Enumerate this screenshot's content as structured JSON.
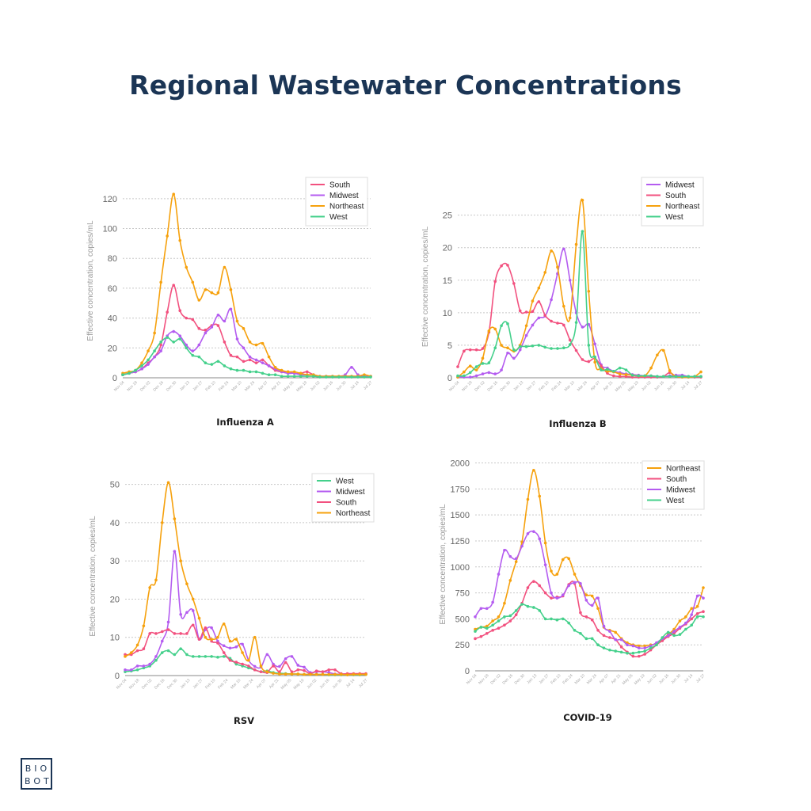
{
  "page": {
    "title": "Regional Wastewater Concentrations",
    "logo": {
      "line1": "BIO",
      "line2": "BOT"
    }
  },
  "colors": {
    "South": "#f2517f",
    "Midwest": "#b45cf0",
    "Northeast": "#f6a10d",
    "West": "#44d08b"
  },
  "chart_data": [
    {
      "type": "line",
      "title": "Influenza A",
      "ylabel": "Effective concentration, copies/mL",
      "ylim": [
        0,
        130
      ],
      "yticks": [
        0,
        20,
        40,
        60,
        80,
        100,
        120
      ],
      "xtick_labels": [
        "Nov 04",
        "Nov 18",
        "Dec 02",
        "Dec 16",
        "Dec 30",
        "Jan 13",
        "Jan 27",
        "Feb 10",
        "Feb 24",
        "Mar 10",
        "Mar 24",
        "Apr 07",
        "Apr 21",
        "May 05",
        "May 19",
        "Jun 02",
        "Jun 16",
        "Jun 30",
        "Jul 14",
        "Jul 27"
      ],
      "legend": "top-right",
      "grid": true,
      "series": [
        {
          "name": "South",
          "values": [
            2,
            3,
            4,
            6,
            10,
            14,
            22,
            44,
            62,
            45,
            40,
            39,
            33,
            32,
            35,
            35,
            24,
            15,
            14,
            11,
            12,
            10,
            12,
            8,
            5,
            4,
            4,
            3,
            3,
            4,
            2,
            1,
            1,
            1,
            0.5,
            1,
            1,
            1,
            1,
            1
          ]
        },
        {
          "name": "Midwest",
          "values": [
            2,
            3,
            4,
            6,
            9,
            14,
            18,
            28,
            31,
            28,
            22,
            18,
            22,
            30,
            34,
            42,
            38,
            46,
            26,
            20,
            14,
            12,
            10,
            8,
            6,
            4,
            3,
            3,
            2,
            2,
            2,
            1,
            1,
            1,
            1,
            2,
            7,
            2,
            1,
            1
          ]
        },
        {
          "name": "Northeast",
          "values": [
            3,
            4,
            5,
            10,
            18,
            30,
            64,
            95,
            123,
            92,
            74,
            64,
            52,
            59,
            57,
            57,
            74,
            59,
            38,
            33,
            24,
            22,
            23,
            14,
            7,
            5,
            4,
            4,
            3,
            2,
            2,
            1,
            1,
            1,
            1,
            1,
            1,
            1,
            2,
            1
          ]
        },
        {
          "name": "West",
          "values": [
            2,
            3,
            5,
            8,
            12,
            18,
            24,
            27,
            24,
            26,
            20,
            15,
            14,
            10,
            9,
            11,
            8,
            6,
            5,
            5,
            4,
            4,
            3,
            2,
            2,
            1,
            1,
            1,
            1,
            1,
            1,
            0.5,
            0.5,
            0.5,
            0.5,
            0.5,
            0.5,
            0.5,
            0.5,
            0.5
          ]
        }
      ]
    },
    {
      "type": "line",
      "title": "Influenza B",
      "ylabel": "Effective concentration, copies/mL",
      "ylim": [
        0,
        28
      ],
      "yticks": [
        0,
        5,
        10,
        15,
        20,
        25
      ],
      "xtick_labels": [
        "Nov 04",
        "Nov 18",
        "Dec 02",
        "Dec 16",
        "Dec 30",
        "Jan 13",
        "Jan 27",
        "Feb 10",
        "Feb 24",
        "Mar 10",
        "Mar 24",
        "Apr 07",
        "Apr 21",
        "May 05",
        "May 19",
        "Jun 02",
        "Jun 16",
        "Jun 30",
        "Jul 14",
        "Jul 27"
      ],
      "legend": "top-right",
      "grid": true,
      "series": [
        {
          "name": "Midwest",
          "values": [
            0.1,
            0.1,
            0.1,
            0.3,
            0.6,
            0.8,
            0.6,
            1.2,
            3.8,
            3,
            4.3,
            6.5,
            8.1,
            9.2,
            9.5,
            12,
            16,
            19.8,
            15,
            10,
            7.8,
            8.2,
            5.2,
            2,
            1.5,
            1,
            0.8,
            0.6,
            0.5,
            0.4,
            0.3,
            0.3,
            0.2,
            0.2,
            0.3,
            0.4,
            0.4,
            0.2,
            0.2,
            0.2
          ]
        },
        {
          "name": "South",
          "values": [
            1.7,
            4.1,
            4.3,
            4.3,
            4.5,
            7,
            14.8,
            17.2,
            17.3,
            14.5,
            10.3,
            10.1,
            10.2,
            11.7,
            9.6,
            8.7,
            8.4,
            8.1,
            5.8,
            4.2,
            2.8,
            2.5,
            3,
            1.8,
            0.7,
            0.3,
            0.2,
            0.2,
            0.1,
            0.1,
            0.1,
            0.1,
            0.1,
            0.2,
            0.8,
            0.2,
            0.1,
            0.1,
            0.1,
            0.1
          ]
        },
        {
          "name": "Northeast",
          "values": [
            0.1,
            0.9,
            1.8,
            1.2,
            3,
            7.2,
            7.5,
            5,
            4.6,
            4.1,
            5,
            8,
            11.8,
            13.8,
            16.2,
            19.5,
            17,
            11,
            9.2,
            20.5,
            27.3,
            13.3,
            2.4,
            1.4,
            1,
            0.9,
            0.6,
            0.5,
            0.4,
            0.3,
            0.3,
            1.5,
            3.5,
            4.2,
            1.1,
            0.2,
            0.1,
            0.1,
            0.2,
            0.9
          ]
        },
        {
          "name": "West",
          "values": [
            0.3,
            0.3,
            0.8,
            1.7,
            2.2,
            2.3,
            4.6,
            8,
            8.3,
            4.3,
            4.8,
            4.8,
            4.9,
            5,
            4.7,
            4.5,
            4.5,
            4.6,
            5.1,
            8.5,
            22.5,
            5,
            3.2,
            1.2,
            1.3,
            1,
            1.5,
            1.2,
            0.4,
            0.3,
            0.3,
            0.3,
            0.2,
            0.2,
            0.2,
            0.2,
            0.2,
            0.2,
            0.2,
            0.2
          ]
        }
      ]
    },
    {
      "type": "line",
      "title": "RSV",
      "ylabel": "Effective concentration, copies/mL",
      "ylim": [
        0,
        52
      ],
      "yticks": [
        0,
        10,
        20,
        30,
        40,
        50
      ],
      "xtick_labels": [
        "Nov 04",
        "Nov 18",
        "Dec 02",
        "Dec 16",
        "Dec 30",
        "Jan 13",
        "Jan 27",
        "Feb 10",
        "Feb 24",
        "Mar 10",
        "Mar 24",
        "Apr 07",
        "Apr 21",
        "May 05",
        "May 19",
        "Jun 02",
        "Jun 16",
        "Jun 30",
        "Jul 14",
        "Jul 27"
      ],
      "legend": "top-right",
      "grid": true,
      "series": [
        {
          "name": "West",
          "values": [
            1,
            1.2,
            1.5,
            2,
            2.5,
            4,
            6,
            6.5,
            5.5,
            7,
            5.5,
            5,
            5,
            5,
            5,
            4.8,
            5,
            4.5,
            3,
            2.5,
            2,
            1.5,
            1,
            1.2,
            0.8,
            0.6,
            0.5,
            0.4,
            0.4,
            0.3,
            0.3,
            0.3,
            0.3,
            0.2,
            0.2,
            0.2,
            0.2,
            0.2,
            0.2,
            0.3
          ]
        },
        {
          "name": "Midwest",
          "values": [
            1.5,
            1.5,
            2.5,
            2.5,
            3,
            5,
            9,
            14,
            32.5,
            16,
            16.5,
            17,
            9.5,
            12,
            12.5,
            9,
            7.8,
            7.2,
            7.5,
            8.2,
            4,
            2.4,
            2.2,
            5.5,
            3,
            2.4,
            4.4,
            5,
            2.7,
            2.2,
            0.8,
            1,
            1,
            0.8,
            0.4,
            0.4,
            0.4,
            0.4,
            0.4,
            0.4
          ]
        },
        {
          "name": "South",
          "values": [
            5.5,
            5.5,
            6.5,
            7,
            11,
            11,
            11.5,
            12,
            11,
            11,
            11,
            13.2,
            9.5,
            12.5,
            9,
            8.5,
            6,
            4,
            3.5,
            3,
            2.5,
            1.5,
            1,
            0.8,
            2.5,
            1,
            3.4,
            1,
            1.5,
            1.3,
            0.5,
            1.2,
            1,
            1.5,
            1.5,
            0.5,
            0.5,
            0.5,
            0.5,
            0.5
          ]
        },
        {
          "name": "Northeast",
          "values": [
            5,
            6,
            8,
            13,
            23,
            25,
            40,
            50.5,
            41,
            30,
            24,
            20,
            15,
            10,
            9.5,
            10,
            13.5,
            9,
            9.5,
            6,
            4,
            10,
            2.5,
            1,
            0.6,
            0.4,
            0.4,
            0.4,
            0.4,
            0.3,
            0.3,
            0.3,
            0.3,
            0.3,
            0.3,
            0.3,
            0.2,
            0.3,
            0.3,
            0.3
          ]
        }
      ]
    },
    {
      "type": "line",
      "title": "COVID-19",
      "ylabel": "Effective concentration, copies/mL",
      "ylim": [
        0,
        2050
      ],
      "yticks": [
        0,
        250,
        500,
        750,
        1000,
        1250,
        1500,
        1750,
        2000
      ],
      "xtick_labels": [
        "Nov 04",
        "Nov 18",
        "Dec 02",
        "Dec 16",
        "Dec 30",
        "Jan 13",
        "Jan 27",
        "Feb 10",
        "Feb 24",
        "Mar 10",
        "Mar 24",
        "Apr 07",
        "Apr 21",
        "May 05",
        "May 19",
        "Jun 02",
        "Jun 16",
        "Jun 30",
        "Jul 14",
        "Jul 27"
      ],
      "legend": "top-right",
      "grid": true,
      "series": [
        {
          "name": "Northeast",
          "values": [
            400,
            420,
            430,
            480,
            520,
            650,
            870,
            1050,
            1240,
            1650,
            1930,
            1680,
            1230,
            960,
            930,
            1070,
            1080,
            930,
            820,
            730,
            720,
            600,
            420,
            390,
            370,
            310,
            270,
            250,
            240,
            240,
            250,
            260,
            300,
            350,
            400,
            480,
            520,
            600,
            620,
            800
          ]
        },
        {
          "name": "South",
          "values": [
            310,
            330,
            360,
            390,
            410,
            440,
            480,
            540,
            650,
            800,
            860,
            820,
            750,
            700,
            710,
            720,
            830,
            840,
            560,
            520,
            490,
            390,
            340,
            320,
            300,
            230,
            180,
            140,
            140,
            160,
            200,
            250,
            290,
            330,
            360,
            410,
            450,
            500,
            550,
            570
          ]
        },
        {
          "name": "Midwest",
          "values": [
            520,
            600,
            600,
            660,
            930,
            1160,
            1100,
            1080,
            1200,
            1320,
            1340,
            1270,
            1020,
            750,
            700,
            730,
            820,
            850,
            840,
            680,
            630,
            700,
            430,
            380,
            300,
            300,
            250,
            240,
            220,
            220,
            240,
            270,
            310,
            340,
            380,
            420,
            460,
            540,
            720,
            700
          ]
        },
        {
          "name": "West",
          "values": [
            380,
            420,
            410,
            440,
            480,
            520,
            530,
            580,
            640,
            620,
            610,
            580,
            500,
            500,
            490,
            500,
            460,
            390,
            360,
            310,
            310,
            250,
            220,
            200,
            190,
            180,
            170,
            170,
            180,
            190,
            220,
            250,
            320,
            370,
            340,
            350,
            400,
            440,
            520,
            520
          ]
        }
      ]
    }
  ]
}
